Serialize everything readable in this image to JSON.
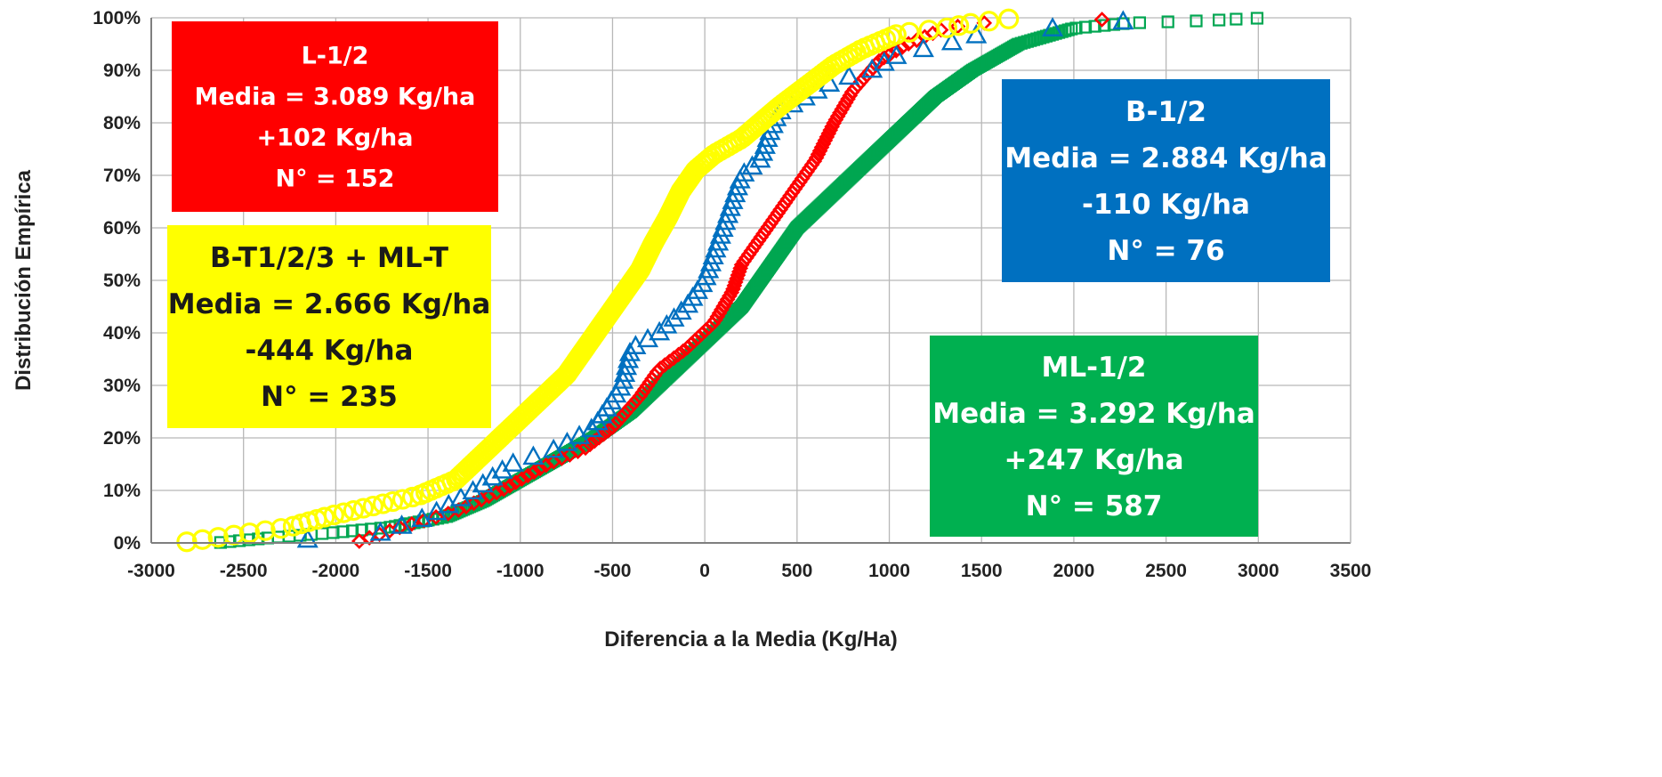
{
  "chart_data": {
    "type": "scatter",
    "title": "",
    "xlabel": "Diferencia a la Media (Kg/Ha)",
    "ylabel": "Distribución Empírica",
    "xlim": [
      -3000,
      3500
    ],
    "ylim": [
      0,
      1
    ],
    "x_ticks": [
      "-3000",
      "-2500",
      "-2000",
      "-1500",
      "-1000",
      "-500",
      "0",
      "500",
      "1000",
      "1500",
      "2000",
      "2500",
      "3000",
      "3500"
    ],
    "y_ticks": [
      "0%",
      "10%",
      "20%",
      "30%",
      "40%",
      "50%",
      "60%",
      "70%",
      "80%",
      "90%",
      "100%"
    ],
    "grid": true,
    "series": [
      {
        "name": "ML-1/2",
        "color": "#00a651",
        "marker": "square",
        "n": 587,
        "cdf_points": [
          [
            -2650,
            0
          ],
          [
            -2350,
            0.01
          ],
          [
            -2000,
            0.02
          ],
          [
            -1700,
            0.03
          ],
          [
            -1400,
            0.05
          ],
          [
            -1200,
            0.08
          ],
          [
            -1000,
            0.12
          ],
          [
            -800,
            0.16
          ],
          [
            -600,
            0.2
          ],
          [
            -400,
            0.25
          ],
          [
            -250,
            0.3
          ],
          [
            -100,
            0.35
          ],
          [
            50,
            0.4
          ],
          [
            200,
            0.45
          ],
          [
            300,
            0.5
          ],
          [
            400,
            0.55
          ],
          [
            500,
            0.6
          ],
          [
            650,
            0.65
          ],
          [
            800,
            0.7
          ],
          [
            950,
            0.75
          ],
          [
            1100,
            0.8
          ],
          [
            1250,
            0.85
          ],
          [
            1450,
            0.9
          ],
          [
            1700,
            0.95
          ],
          [
            2000,
            0.98
          ],
          [
            2300,
            0.99
          ],
          [
            2750,
            0.995
          ],
          [
            2850,
            0.997
          ],
          [
            3050,
            1
          ]
        ]
      },
      {
        "name": "L-1/2",
        "color": "#ff0000",
        "marker": "diamond",
        "n": 152,
        "cdf_points": [
          [
            -1900,
            0
          ],
          [
            -1650,
            0.03
          ],
          [
            -1350,
            0.06
          ],
          [
            -1100,
            0.1
          ],
          [
            -850,
            0.15
          ],
          [
            -650,
            0.18
          ],
          [
            -500,
            0.22
          ],
          [
            -350,
            0.28
          ],
          [
            -250,
            0.33
          ],
          [
            -100,
            0.37
          ],
          [
            50,
            0.42
          ],
          [
            150,
            0.48
          ],
          [
            200,
            0.53
          ],
          [
            300,
            0.58
          ],
          [
            400,
            0.63
          ],
          [
            500,
            0.68
          ],
          [
            600,
            0.73
          ],
          [
            700,
            0.8
          ],
          [
            800,
            0.86
          ],
          [
            950,
            0.92
          ],
          [
            1100,
            0.95
          ],
          [
            1300,
            0.98
          ],
          [
            1500,
            0.99
          ],
          [
            2050,
            0.995
          ],
          [
            2350,
            1
          ]
        ]
      },
      {
        "name": "B-1/2",
        "color": "#0070c0",
        "marker": "triangle",
        "n": 76,
        "cdf_points": [
          [
            -2350,
            0
          ],
          [
            -1750,
            0.02
          ],
          [
            -1500,
            0.05
          ],
          [
            -1250,
            0.1
          ],
          [
            -1050,
            0.15
          ],
          [
            -800,
            0.18
          ],
          [
            -600,
            0.22
          ],
          [
            -450,
            0.3
          ],
          [
            -400,
            0.37
          ],
          [
            -250,
            0.4
          ],
          [
            -100,
            0.45
          ],
          [
            0,
            0.5
          ],
          [
            50,
            0.55
          ],
          [
            100,
            0.6
          ],
          [
            150,
            0.65
          ],
          [
            200,
            0.7
          ],
          [
            300,
            0.73
          ],
          [
            350,
            0.78
          ],
          [
            400,
            0.82
          ],
          [
            550,
            0.85
          ],
          [
            700,
            0.88
          ],
          [
            900,
            0.9
          ],
          [
            1050,
            0.93
          ],
          [
            1300,
            0.95
          ],
          [
            1500,
            0.97
          ],
          [
            2250,
            0.99
          ],
          [
            2300,
            1
          ]
        ]
      },
      {
        "name": "B-T1/2/3 + ML-T",
        "color": "#ffff00",
        "marker": "circle",
        "n": 235,
        "cdf_points": [
          [
            -2850,
            0
          ],
          [
            -2650,
            0.01
          ],
          [
            -2450,
            0.02
          ],
          [
            -2250,
            0.03
          ],
          [
            -2050,
            0.05
          ],
          [
            -1800,
            0.07
          ],
          [
            -1550,
            0.09
          ],
          [
            -1350,
            0.12
          ],
          [
            -1200,
            0.17
          ],
          [
            -1050,
            0.22
          ],
          [
            -900,
            0.27
          ],
          [
            -750,
            0.32
          ],
          [
            -650,
            0.37
          ],
          [
            -550,
            0.42
          ],
          [
            -450,
            0.47
          ],
          [
            -350,
            0.52
          ],
          [
            -280,
            0.57
          ],
          [
            -200,
            0.62
          ],
          [
            -130,
            0.67
          ],
          [
            -50,
            0.71
          ],
          [
            50,
            0.74
          ],
          [
            200,
            0.77
          ],
          [
            300,
            0.8
          ],
          [
            400,
            0.83
          ],
          [
            550,
            0.87
          ],
          [
            700,
            0.91
          ],
          [
            850,
            0.94
          ],
          [
            1050,
            0.97
          ],
          [
            1300,
            0.98
          ],
          [
            1450,
            0.99
          ],
          [
            1700,
            1
          ]
        ]
      }
    ],
    "annotations": [
      {
        "id": "l",
        "lines": [
          "L-1/2",
          "Media = 3.089 Kg/ha",
          "+102 Kg/ha",
          "N° = 152"
        ],
        "bg": "#ff0000",
        "text_color": "#ffffff"
      },
      {
        "id": "yellow",
        "lines": [
          "B-T1/2/3 + ML-T",
          "Media = 2.666 Kg/ha",
          "-444 Kg/ha",
          "N° = 235"
        ],
        "bg": "#ffff00",
        "text_color": "#1a1a1a"
      },
      {
        "id": "b",
        "lines": [
          "B-1/2",
          "Media = 2.884 Kg/ha",
          "-110 Kg/ha",
          "N° = 76"
        ],
        "bg": "#0070c0",
        "text_color": "#ffffff"
      },
      {
        "id": "ml",
        "lines": [
          "ML-1/2",
          "Media = 3.292 Kg/ha",
          "+247 Kg/ha",
          "N° = 587"
        ],
        "bg": "#00b050",
        "text_color": "#ffffff"
      }
    ]
  }
}
